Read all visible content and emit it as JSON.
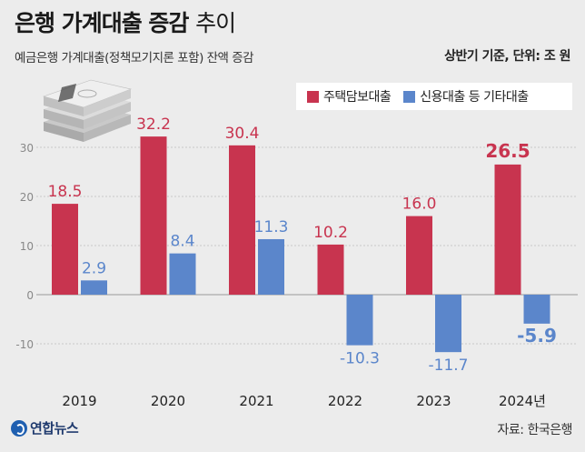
{
  "header": {
    "title_main": "은행 가계대출 증감",
    "title_light": "추이",
    "subtitle": "예금은행 가계대출(정책모기지론 포함) 잔액 증감",
    "unit": "상반기 기준, 단위: 조 원"
  },
  "legend": {
    "items": [
      {
        "label": "주택담보대출",
        "color": "#c8344f"
      },
      {
        "label": "신용대출 등 기타대출",
        "color": "#5b86cb"
      }
    ]
  },
  "footer": {
    "logo": "연합뉴스",
    "source": "자료: 한국은행"
  },
  "chart_data": {
    "type": "bar",
    "title": "은행 가계대출 증감 추이",
    "categories": [
      "2019",
      "2020",
      "2021",
      "2022",
      "2023",
      "2024년"
    ],
    "series": [
      {
        "name": "주택담보대출",
        "color": "#c8344f",
        "values": [
          18.5,
          32.2,
          30.4,
          10.2,
          16.0,
          26.5
        ],
        "labels": [
          "18.5",
          "32.2",
          "30.4",
          "10.2",
          "16.0",
          "26.5"
        ]
      },
      {
        "name": "신용대출 등 기타대출",
        "color": "#5b86cb",
        "values": [
          2.9,
          8.4,
          11.3,
          -10.3,
          -11.7,
          -5.9
        ],
        "labels": [
          "2.9",
          "8.4",
          "11.3",
          "-10.3",
          "-11.7",
          "-5.9"
        ]
      }
    ],
    "ylim": [
      -10,
      30
    ],
    "yticks": [
      30,
      20,
      10,
      0,
      -10
    ],
    "highlight_index": 5,
    "xlabel": "",
    "ylabel": "조 원"
  }
}
